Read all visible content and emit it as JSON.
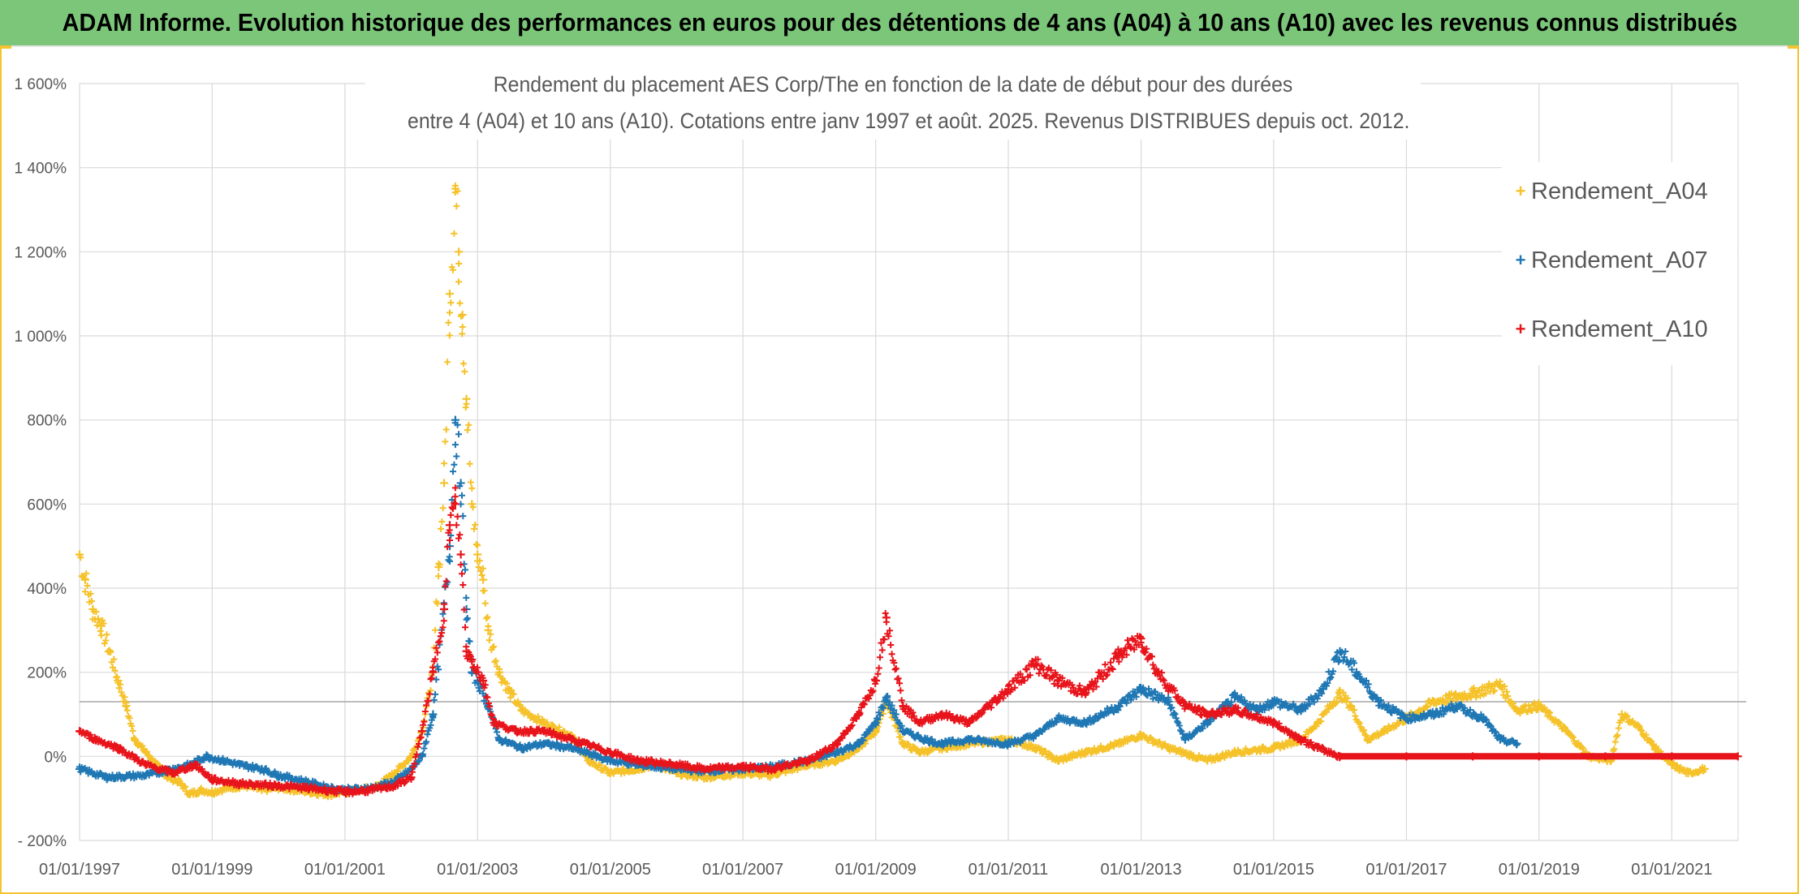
{
  "banner": {
    "title": "ADAM Informe. Evolution historique des performances en euros pour des détentions de 4 ans (A04) à 10 ans (A10) avec les revenus connus distribués"
  },
  "chart_data": {
    "type": "scatter",
    "title_line1": "Rendement du placement AES Corp/The en fonction de la date de début pour des durées",
    "title_line2": "entre 4 (A04) et 10 ans (A10). Cotations entre janv 1997 et août. 2025. Revenus DISTRIBUES depuis oct. 2012.",
    "xlabel": "",
    "ylabel": "",
    "x_ticks": [
      "01/01/1997",
      "01/01/1999",
      "01/01/2001",
      "01/01/2003",
      "01/01/2005",
      "01/01/2007",
      "01/01/2009",
      "01/01/2011",
      "01/01/2013",
      "01/01/2015",
      "01/01/2017",
      "01/01/2019",
      "01/01/2021"
    ],
    "y_ticks": [
      "- 200%",
      "0%",
      "200%",
      "400%",
      "600%",
      "800%",
      "1 000%",
      "1 200%",
      "1 400%",
      "1 600%"
    ],
    "xlim": [
      "1997-01-01",
      "2022-01-01"
    ],
    "ylim": [
      -200,
      1600
    ],
    "grid": true,
    "reference_line_y": 130,
    "legend_position": "top-right",
    "series": [
      {
        "name": "Rendement_A04",
        "color": "#f5c22a",
        "points": [
          [
            "1997-01-01",
            480
          ],
          [
            "1997-02-01",
            420
          ],
          [
            "1997-03-15",
            350
          ],
          [
            "1997-05-01",
            310
          ],
          [
            "1997-06-15",
            250
          ],
          [
            "1997-08-01",
            180
          ],
          [
            "1997-09-15",
            120
          ],
          [
            "1997-11-01",
            40
          ],
          [
            "1998-01-01",
            10
          ],
          [
            "1998-03-01",
            -20
          ],
          [
            "1998-05-01",
            -50
          ],
          [
            "1998-07-01",
            -60
          ],
          [
            "1998-09-01",
            -90
          ],
          [
            "1998-11-01",
            -80
          ],
          [
            "1999-01-01",
            -85
          ],
          [
            "1999-04-01",
            -75
          ],
          [
            "1999-07-01",
            -70
          ],
          [
            "1999-10-01",
            -80
          ],
          [
            "2000-01-01",
            -75
          ],
          [
            "2000-04-01",
            -80
          ],
          [
            "2000-07-01",
            -85
          ],
          [
            "2000-10-01",
            -90
          ],
          [
            "2001-01-01",
            -85
          ],
          [
            "2001-04-01",
            -80
          ],
          [
            "2001-07-01",
            -70
          ],
          [
            "2001-10-01",
            -40
          ],
          [
            "2002-01-01",
            0
          ],
          [
            "2002-03-01",
            60
          ],
          [
            "2002-05-01",
            200
          ],
          [
            "2002-06-01",
            450
          ],
          [
            "2002-07-01",
            650
          ],
          [
            "2002-08-01",
            1100
          ],
          [
            "2002-09-01",
            1350
          ],
          [
            "2002-09-20",
            1200
          ],
          [
            "2002-10-10",
            1050
          ],
          [
            "2002-11-01",
            850
          ],
          [
            "2002-12-01",
            600
          ],
          [
            "2003-01-01",
            480
          ],
          [
            "2003-02-01",
            420
          ],
          [
            "2003-03-01",
            300
          ],
          [
            "2003-05-01",
            200
          ],
          [
            "2003-07-01",
            150
          ],
          [
            "2003-09-01",
            110
          ],
          [
            "2004-01-01",
            80
          ],
          [
            "2004-06-01",
            50
          ],
          [
            "2004-09-01",
            -10
          ],
          [
            "2005-01-01",
            -40
          ],
          [
            "2005-06-01",
            -30
          ],
          [
            "2005-09-01",
            -20
          ],
          [
            "2006-01-01",
            -40
          ],
          [
            "2006-06-01",
            -50
          ],
          [
            "2007-01-01",
            -40
          ],
          [
            "2007-06-01",
            -45
          ],
          [
            "2008-01-01",
            -20
          ],
          [
            "2008-06-01",
            -10
          ],
          [
            "2008-10-01",
            20
          ],
          [
            "2009-01-01",
            60
          ],
          [
            "2009-03-01",
            130
          ],
          [
            "2009-06-01",
            30
          ],
          [
            "2009-09-01",
            10
          ],
          [
            "2010-01-01",
            20
          ],
          [
            "2010-06-01",
            30
          ],
          [
            "2011-01-01",
            40
          ],
          [
            "2011-06-01",
            20
          ],
          [
            "2011-10-01",
            -10
          ],
          [
            "2012-03-01",
            10
          ],
          [
            "2012-09-01",
            30
          ],
          [
            "2013-01-01",
            50
          ],
          [
            "2013-06-01",
            20
          ],
          [
            "2014-01-01",
            -10
          ],
          [
            "2014-06-01",
            10
          ],
          [
            "2015-01-01",
            20
          ],
          [
            "2015-06-01",
            40
          ],
          [
            "2015-09-01",
            80
          ],
          [
            "2016-01-01",
            150
          ],
          [
            "2016-03-01",
            120
          ],
          [
            "2016-06-01",
            40
          ],
          [
            "2016-09-01",
            60
          ],
          [
            "2017-01-01",
            90
          ],
          [
            "2017-06-01",
            130
          ],
          [
            "2018-01-01",
            150
          ],
          [
            "2018-06-01",
            170
          ],
          [
            "2018-09-01",
            110
          ],
          [
            "2019-01-01",
            120
          ],
          [
            "2019-06-01",
            60
          ],
          [
            "2019-10-01",
            0
          ],
          [
            "2020-02-01",
            -10
          ],
          [
            "2020-04-01",
            100
          ],
          [
            "2020-07-01",
            70
          ],
          [
            "2020-10-01",
            20
          ],
          [
            "2021-01-01",
            -20
          ],
          [
            "2021-04-01",
            -40
          ],
          [
            "2021-07-01",
            -30
          ]
        ]
      },
      {
        "name": "Rendement_A07",
        "color": "#1f77b4",
        "points": [
          [
            "1997-01-01",
            -30
          ],
          [
            "1997-06-01",
            -50
          ],
          [
            "1998-01-01",
            -45
          ],
          [
            "1998-06-01",
            -30
          ],
          [
            "1998-09-01",
            -20
          ],
          [
            "1998-12-01",
            0
          ],
          [
            "1999-03-01",
            -10
          ],
          [
            "1999-06-01",
            -20
          ],
          [
            "1999-10-01",
            -30
          ],
          [
            "2000-01-01",
            -45
          ],
          [
            "2000-06-01",
            -60
          ],
          [
            "2000-10-01",
            -75
          ],
          [
            "2001-01-01",
            -80
          ],
          [
            "2001-06-01",
            -75
          ],
          [
            "2001-10-01",
            -60
          ],
          [
            "2002-01-01",
            -30
          ],
          [
            "2002-03-01",
            0
          ],
          [
            "2002-05-01",
            100
          ],
          [
            "2002-07-01",
            350
          ],
          [
            "2002-08-01",
            500
          ],
          [
            "2002-09-01",
            800
          ],
          [
            "2002-10-01",
            650
          ],
          [
            "2002-11-01",
            350
          ],
          [
            "2002-12-01",
            200
          ],
          [
            "2003-01-01",
            180
          ],
          [
            "2003-03-01",
            120
          ],
          [
            "2003-05-01",
            40
          ],
          [
            "2003-09-01",
            20
          ],
          [
            "2004-01-01",
            30
          ],
          [
            "2004-06-01",
            20
          ],
          [
            "2005-01-01",
            -10
          ],
          [
            "2005-06-01",
            -20
          ],
          [
            "2006-01-01",
            -30
          ],
          [
            "2006-06-01",
            -35
          ],
          [
            "2007-01-01",
            -30
          ],
          [
            "2007-06-01",
            -25
          ],
          [
            "2008-01-01",
            -10
          ],
          [
            "2008-06-01",
            10
          ],
          [
            "2008-10-01",
            30
          ],
          [
            "2009-01-01",
            80
          ],
          [
            "2009-03-01",
            140
          ],
          [
            "2009-06-01",
            60
          ],
          [
            "2009-10-01",
            40
          ],
          [
            "2010-01-01",
            30
          ],
          [
            "2010-06-01",
            40
          ],
          [
            "2011-01-01",
            30
          ],
          [
            "2011-06-01",
            50
          ],
          [
            "2011-10-01",
            90
          ],
          [
            "2012-03-01",
            80
          ],
          [
            "2012-09-01",
            120
          ],
          [
            "2013-01-01",
            160
          ],
          [
            "2013-06-01",
            130
          ],
          [
            "2013-09-01",
            40
          ],
          [
            "2014-01-01",
            80
          ],
          [
            "2014-06-01",
            140
          ],
          [
            "2014-10-01",
            110
          ],
          [
            "2015-01-01",
            130
          ],
          [
            "2015-06-01",
            110
          ],
          [
            "2015-10-01",
            160
          ],
          [
            "2016-01-01",
            250
          ],
          [
            "2016-04-01",
            200
          ],
          [
            "2016-08-01",
            130
          ],
          [
            "2017-01-01",
            90
          ],
          [
            "2017-06-01",
            100
          ],
          [
            "2017-10-01",
            120
          ],
          [
            "2018-03-01",
            90
          ],
          [
            "2018-06-01",
            40
          ],
          [
            "2018-09-01",
            30
          ]
        ]
      },
      {
        "name": "Rendement_A10",
        "color": "#e8141b",
        "points": [
          [
            "1997-01-01",
            60
          ],
          [
            "1997-04-01",
            40
          ],
          [
            "1997-08-01",
            20
          ],
          [
            "1998-01-01",
            -20
          ],
          [
            "1998-06-01",
            -40
          ],
          [
            "1998-10-01",
            -20
          ],
          [
            "1999-01-01",
            -55
          ],
          [
            "1999-06-01",
            -65
          ],
          [
            "2000-01-01",
            -70
          ],
          [
            "2000-06-01",
            -75
          ],
          [
            "2001-01-01",
            -85
          ],
          [
            "2001-06-01",
            -80
          ],
          [
            "2001-10-01",
            -70
          ],
          [
            "2002-01-01",
            -50
          ],
          [
            "2002-03-01",
            60
          ],
          [
            "2002-05-01",
            200
          ],
          [
            "2002-07-01",
            350
          ],
          [
            "2002-08-01",
            550
          ],
          [
            "2002-09-01",
            600
          ],
          [
            "2002-10-01",
            480
          ],
          [
            "2002-11-01",
            250
          ],
          [
            "2002-12-01",
            230
          ],
          [
            "2003-02-01",
            180
          ],
          [
            "2003-04-01",
            80
          ],
          [
            "2003-08-01",
            60
          ],
          [
            "2004-01-01",
            60
          ],
          [
            "2004-06-01",
            40
          ],
          [
            "2005-01-01",
            10
          ],
          [
            "2005-06-01",
            -10
          ],
          [
            "2006-01-01",
            -20
          ],
          [
            "2006-06-01",
            -30
          ],
          [
            "2007-01-01",
            -25
          ],
          [
            "2007-06-01",
            -30
          ],
          [
            "2008-01-01",
            -10
          ],
          [
            "2008-06-01",
            30
          ],
          [
            "2008-10-01",
            100
          ],
          [
            "2009-01-01",
            180
          ],
          [
            "2009-03-01",
            330
          ],
          [
            "2009-06-01",
            120
          ],
          [
            "2009-09-01",
            80
          ],
          [
            "2010-01-01",
            100
          ],
          [
            "2010-06-01",
            80
          ],
          [
            "2011-01-01",
            160
          ],
          [
            "2011-06-01",
            220
          ],
          [
            "2011-10-01",
            180
          ],
          [
            "2012-03-01",
            150
          ],
          [
            "2012-09-01",
            240
          ],
          [
            "2013-01-01",
            280
          ],
          [
            "2013-04-01",
            200
          ],
          [
            "2013-09-01",
            120
          ],
          [
            "2014-01-01",
            100
          ],
          [
            "2014-06-01",
            110
          ],
          [
            "2015-01-01",
            80
          ],
          [
            "2015-06-01",
            40
          ],
          [
            "2015-09-01",
            20
          ],
          [
            "2016-01-01",
            0
          ],
          [
            "2017-01-01",
            0
          ],
          [
            "2018-01-01",
            0
          ],
          [
            "2019-01-01",
            0
          ],
          [
            "2020-01-01",
            0
          ],
          [
            "2021-01-01",
            0
          ],
          [
            "2021-12-31",
            0
          ]
        ]
      }
    ]
  }
}
